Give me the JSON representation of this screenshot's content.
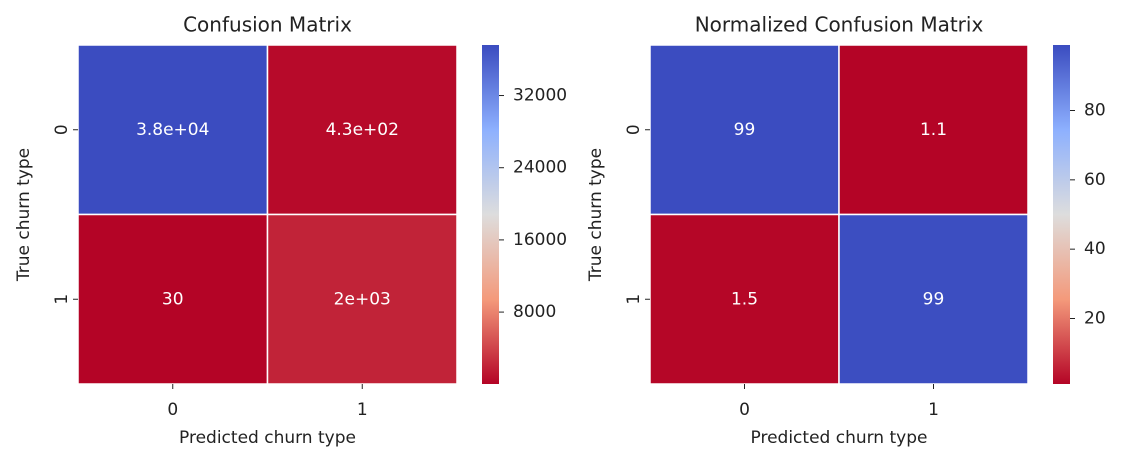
{
  "chart_data": [
    {
      "type": "heatmap",
      "title": "Confusion Matrix",
      "x_label": "Predicted churn type",
      "y_label": "True churn type",
      "x_categories": [
        "0",
        "1"
      ],
      "y_categories": [
        "0",
        "1"
      ],
      "values": [
        [
          37600,
          430
        ],
        [
          30,
          2000
        ]
      ],
      "value_labels": [
        [
          "3.8e+04",
          "4.3e+02"
        ],
        [
          "30",
          "2e+03"
        ]
      ],
      "clim": [
        30,
        37600
      ],
      "cticks": [
        8000,
        16000,
        24000,
        32000
      ],
      "colormap": "coolwarm_r"
    },
    {
      "type": "heatmap",
      "title": "Normalized Confusion Matrix",
      "x_label": "Predicted churn type",
      "y_label": "True churn type",
      "x_categories": [
        "0",
        "1"
      ],
      "y_categories": [
        "0",
        "1"
      ],
      "values": [
        [
          98.9,
          1.1
        ],
        [
          1.5,
          98.5
        ]
      ],
      "value_labels": [
        [
          "99",
          "1.1"
        ],
        [
          "1.5",
          "99"
        ]
      ],
      "clim": [
        1.1,
        98.9
      ],
      "cticks": [
        20,
        40,
        60,
        80
      ],
      "colormap": "coolwarm_r"
    }
  ]
}
